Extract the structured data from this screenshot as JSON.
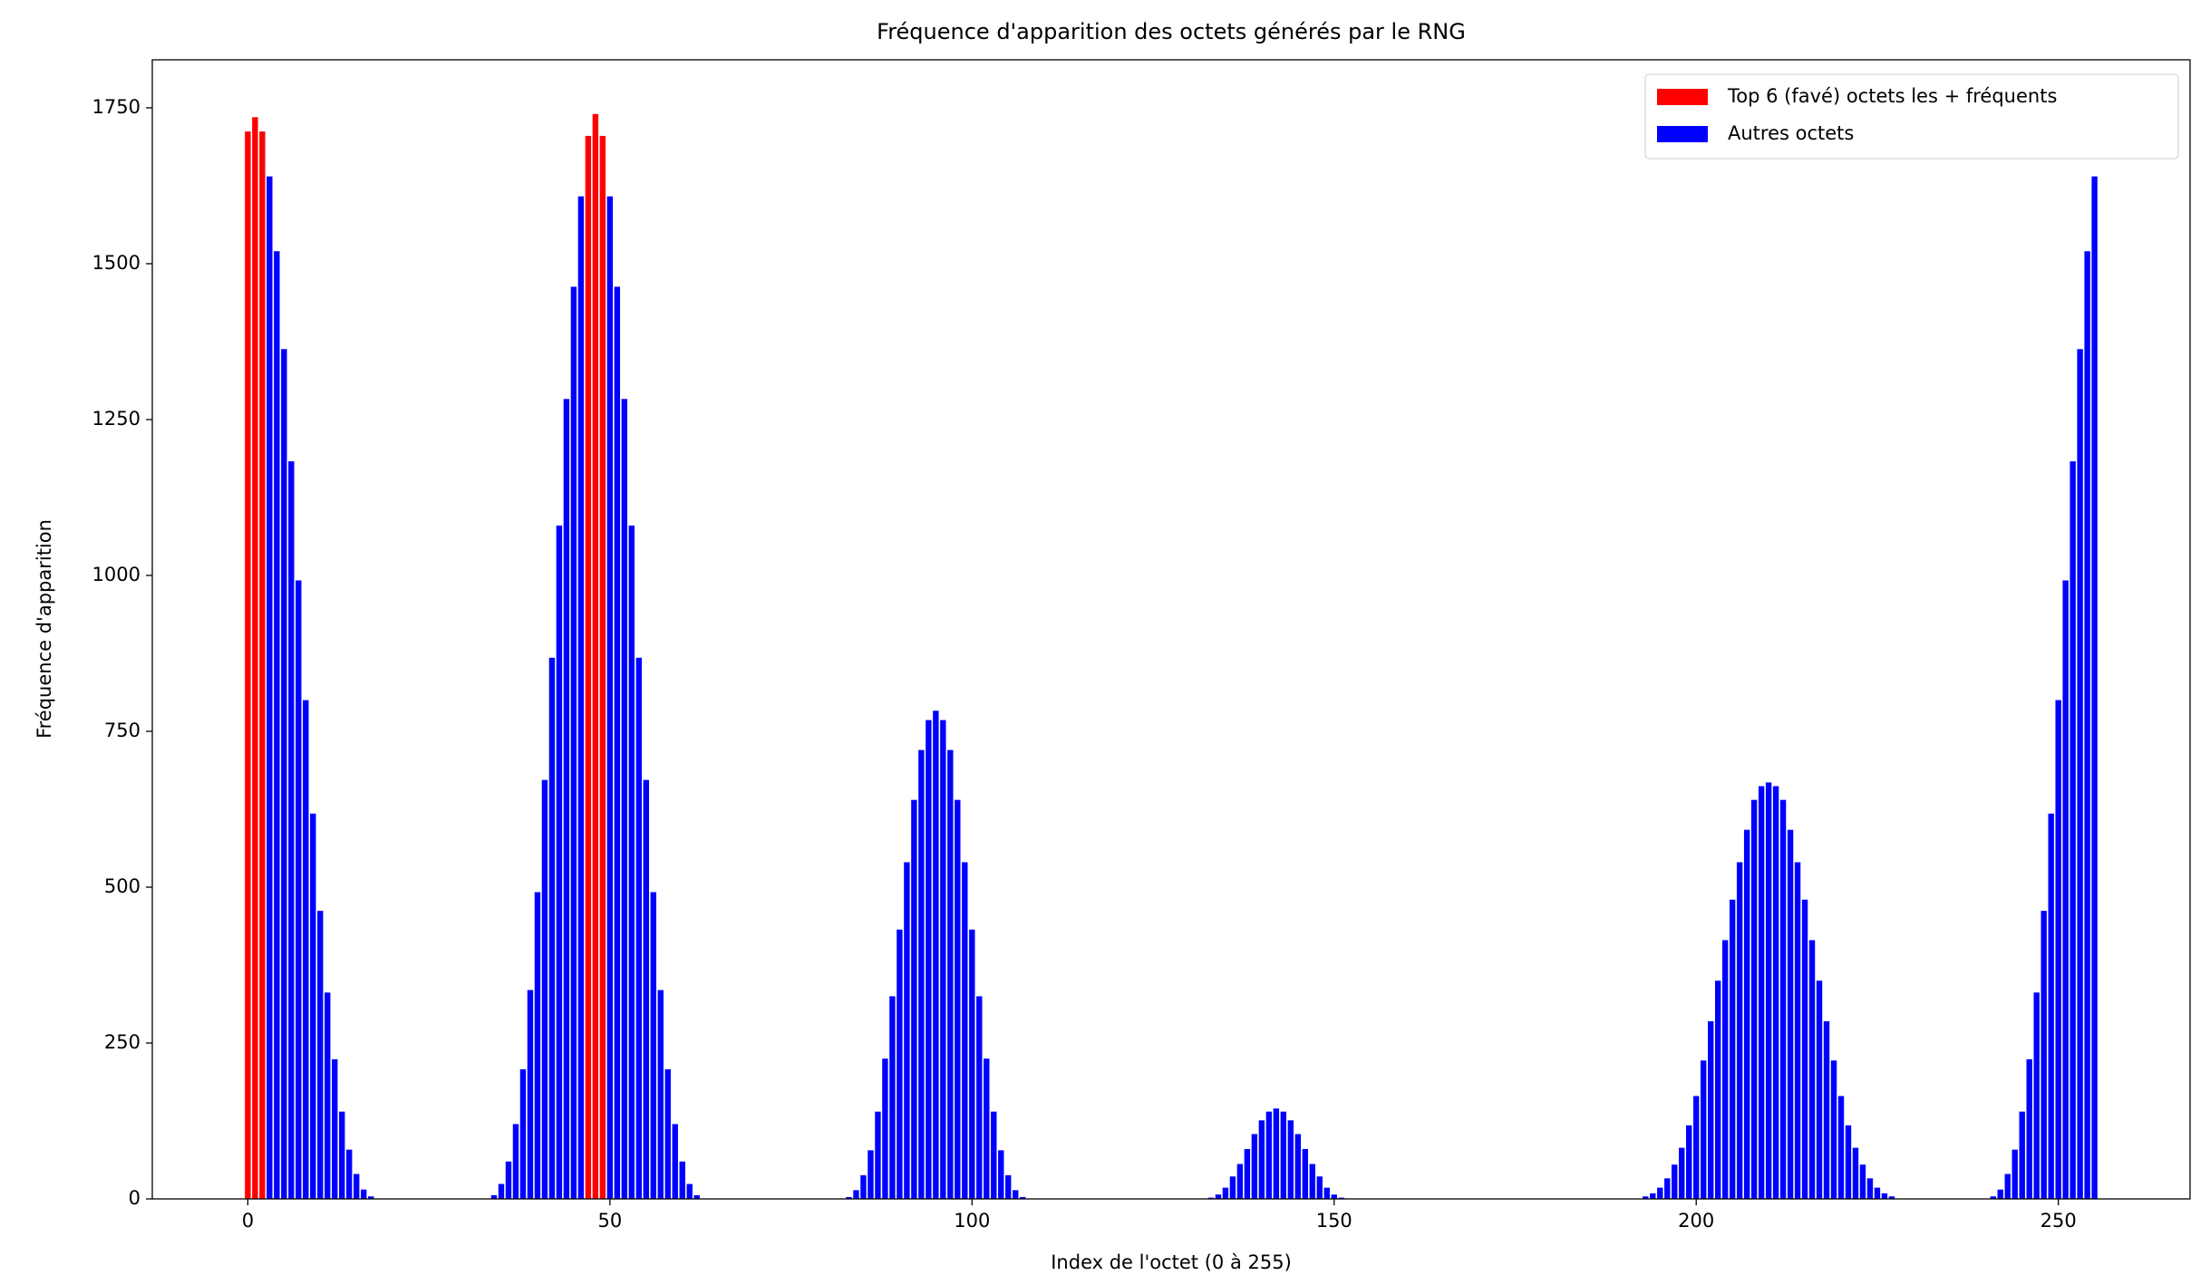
{
  "chart_data": {
    "type": "bar",
    "title": "Fréquence d'apparition des octets générés par le RNG",
    "xlabel": "Index de l'octet (0 à 255)",
    "ylabel": "Fréquence d'apparition",
    "x": [
      0,
      1,
      2,
      3,
      4,
      5,
      6,
      7,
      8,
      9,
      10,
      11,
      12,
      13,
      14,
      15,
      16,
      17,
      18,
      19,
      20,
      21,
      22,
      23,
      24,
      25,
      26,
      27,
      28,
      29,
      30,
      31,
      32,
      33,
      34,
      35,
      36,
      37,
      38,
      39,
      40,
      41,
      42,
      43,
      44,
      45,
      46,
      47,
      48,
      49,
      50,
      51,
      52,
      53,
      54,
      55,
      56,
      57,
      58,
      59,
      60,
      61,
      62,
      63,
      64,
      65,
      66,
      67,
      68,
      69,
      70,
      71,
      72,
      73,
      74,
      75,
      76,
      77,
      78,
      79,
      80,
      81,
      82,
      83,
      84,
      85,
      86,
      87,
      88,
      89,
      90,
      91,
      92,
      93,
      94,
      95,
      96,
      97,
      98,
      99,
      100,
      101,
      102,
      103,
      104,
      105,
      106,
      107,
      108,
      109,
      110,
      111,
      112,
      113,
      114,
      115,
      116,
      117,
      118,
      119,
      120,
      121,
      122,
      123,
      124,
      125,
      126,
      127,
      128,
      129,
      130,
      131,
      132,
      133,
      134,
      135,
      136,
      137,
      138,
      139,
      140,
      141,
      142,
      143,
      144,
      145,
      146,
      147,
      148,
      149,
      150,
      151,
      152,
      153,
      154,
      155,
      156,
      157,
      158,
      159,
      160,
      161,
      162,
      163,
      164,
      165,
      166,
      167,
      168,
      169,
      170,
      171,
      172,
      173,
      174,
      175,
      176,
      177,
      178,
      179,
      180,
      181,
      182,
      183,
      184,
      185,
      186,
      187,
      188,
      189,
      190,
      191,
      192,
      193,
      194,
      195,
      196,
      197,
      198,
      199,
      200,
      201,
      202,
      203,
      204,
      205,
      206,
      207,
      208,
      209,
      210,
      211,
      212,
      213,
      214,
      215,
      216,
      217,
      218,
      219,
      220,
      221,
      222,
      223,
      224,
      225,
      226,
      227,
      228,
      229,
      230,
      231,
      232,
      233,
      234,
      235,
      236,
      237,
      238,
      239,
      240,
      241,
      242,
      243,
      244,
      245,
      246,
      247,
      248,
      249,
      250,
      251,
      252,
      253,
      254,
      255
    ],
    "series": [
      {
        "name": "Top 6 (favé) octets les + fréquents",
        "color": "#ff0000",
        "values": [
          1712,
          1735,
          1712,
          null,
          null,
          null,
          null,
          null,
          null,
          null,
          null,
          null,
          null,
          null,
          null,
          null,
          null,
          null,
          null,
          null,
          null,
          null,
          null,
          null,
          null,
          null,
          null,
          null,
          null,
          null,
          null,
          null,
          null,
          null,
          null,
          null,
          null,
          null,
          null,
          null,
          null,
          null,
          null,
          null,
          null,
          null,
          null,
          1705,
          1740,
          1705,
          null,
          null,
          null,
          null,
          null,
          null,
          null,
          null,
          null,
          null,
          null,
          null,
          null,
          null,
          null,
          null,
          null,
          null,
          null,
          null,
          null,
          null,
          null,
          null,
          null,
          null,
          null,
          null,
          null,
          null,
          null,
          null,
          null,
          null,
          null,
          null,
          null,
          null,
          null,
          null,
          null,
          null,
          null,
          null,
          null,
          null,
          null,
          null,
          null,
          null,
          null,
          null,
          null,
          null,
          null,
          null,
          null,
          null,
          null,
          null,
          null,
          null,
          null,
          null,
          null,
          null,
          null,
          null,
          null,
          null,
          null,
          null,
          null,
          null,
          null,
          null,
          null,
          null,
          null,
          null,
          null,
          null,
          null,
          null,
          null,
          null,
          null,
          null,
          null,
          null,
          null,
          null,
          null,
          null,
          null,
          null,
          null,
          null,
          null,
          null,
          null,
          null,
          null,
          null,
          null,
          null,
          null,
          null,
          null,
          null,
          null,
          null,
          null,
          null,
          null,
          null,
          null,
          null,
          null,
          null,
          null,
          null,
          null,
          null,
          null,
          null,
          null,
          null,
          null,
          null,
          null,
          null,
          null,
          null,
          null,
          null,
          null,
          null,
          null,
          null,
          null,
          null,
          null,
          null,
          null,
          null,
          null,
          null,
          null,
          null,
          null,
          null,
          null,
          null,
          null,
          null,
          null,
          null,
          null,
          null,
          null,
          null,
          null,
          null,
          null,
          null,
          null,
          null,
          null,
          null,
          null,
          null,
          null,
          null,
          null,
          null,
          null,
          null,
          null,
          null,
          null,
          null,
          null,
          null,
          null,
          null,
          null,
          null,
          null,
          null,
          null,
          null,
          null,
          null,
          null,
          null,
          null,
          null,
          null,
          null,
          null,
          null,
          null,
          null,
          null,
          null
        ]
      },
      {
        "name": "Autres octets",
        "color": "#0000ff",
        "values": [
          null,
          null,
          null,
          1640,
          1520,
          1363,
          1183,
          992,
          800,
          618,
          462,
          331,
          224,
          140,
          79,
          40,
          15,
          4,
          0,
          0,
          0,
          0,
          0,
          0,
          0,
          0,
          0,
          0,
          0,
          0,
          0,
          0,
          0,
          0,
          6,
          24,
          60,
          120,
          208,
          335,
          492,
          672,
          868,
          1080,
          1283,
          1463,
          1608,
          null,
          null,
          null,
          1608,
          1463,
          1283,
          1080,
          868,
          672,
          492,
          335,
          208,
          120,
          60,
          24,
          6,
          0,
          0,
          0,
          0,
          0,
          0,
          0,
          0,
          0,
          0,
          0,
          0,
          0,
          0,
          0,
          0,
          0,
          0,
          0,
          0,
          3,
          14,
          38,
          78,
          140,
          225,
          325,
          432,
          540,
          640,
          720,
          768,
          783,
          768,
          720,
          640,
          540,
          432,
          325,
          225,
          140,
          78,
          38,
          14,
          3,
          0,
          0,
          0,
          0,
          0,
          0,
          0,
          0,
          0,
          0,
          0,
          0,
          0,
          0,
          0,
          0,
          0,
          0,
          0,
          0,
          0,
          0,
          0,
          0,
          0,
          2,
          7,
          18,
          36,
          56,
          80,
          104,
          126,
          140,
          145,
          140,
          126,
          104,
          80,
          56,
          36,
          18,
          7,
          2,
          0,
          0,
          0,
          0,
          0,
          0,
          0,
          0,
          0,
          0,
          0,
          0,
          0,
          0,
          0,
          0,
          0,
          0,
          0,
          0,
          0,
          0,
          0,
          0,
          0,
          0,
          0,
          0,
          0,
          0,
          0,
          0,
          0,
          0,
          0,
          0,
          0,
          0,
          0,
          0,
          0,
          4,
          9,
          18,
          33,
          55,
          82,
          118,
          165,
          222,
          285,
          350,
          415,
          480,
          540,
          592,
          640,
          662,
          668,
          662,
          640,
          592,
          540,
          480,
          415,
          350,
          285,
          222,
          165,
          118,
          82,
          55,
          33,
          18,
          9,
          4,
          0,
          0,
          0,
          0,
          0,
          0,
          0,
          0,
          0,
          0,
          0,
          0,
          0,
          4,
          15,
          40,
          79,
          140,
          224,
          331,
          462,
          618,
          800,
          992,
          1183,
          1363,
          1520,
          1640
        ]
      }
    ],
    "xlim": [
      -13.19,
      268.19
    ],
    "xticks": [
      0,
      50,
      100,
      150,
      200,
      250
    ],
    "ylim": [
      0,
      1827
    ],
    "yticks": [
      0,
      250,
      500,
      750,
      1000,
      1250,
      1500,
      1750
    ],
    "grid": false,
    "legend": "upper right"
  }
}
